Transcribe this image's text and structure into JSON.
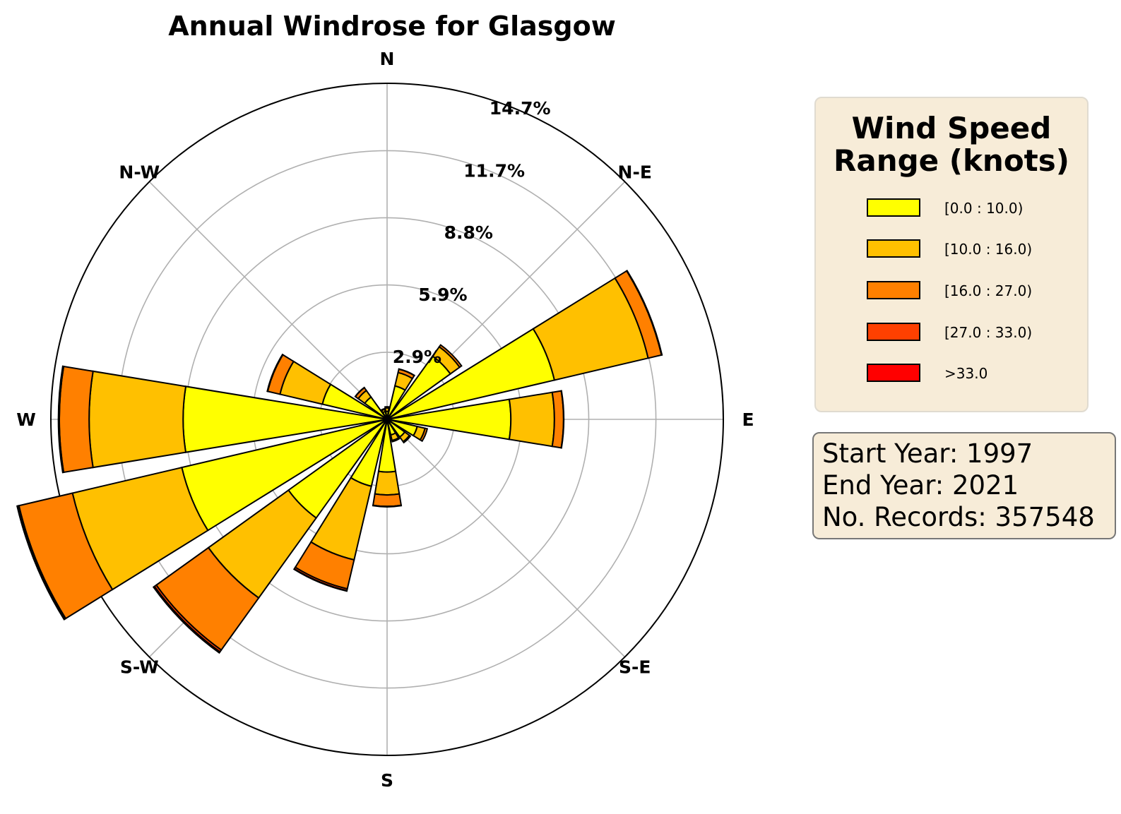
{
  "chart_data": {
    "type": "windrose",
    "title": "Annual Windrose for Glasgow",
    "directions": [
      "N",
      "NNE",
      "NE",
      "ENE",
      "E",
      "ESE",
      "SE",
      "SSE",
      "S",
      "SSW",
      "SW",
      "WSW",
      "W",
      "WNW",
      "NW",
      "NNW"
    ],
    "direction_labels": [
      "N",
      "N-E",
      "E",
      "S-E",
      "S",
      "S-W",
      "W",
      "N-W"
    ],
    "radial_ticks": [
      "2.9%",
      "5.9%",
      "8.8%",
      "11.7%",
      "14.7%"
    ],
    "radial_tick_values": [
      2.93,
      5.87,
      8.8,
      11.73,
      14.67
    ],
    "rmax": 14.67,
    "units": "%",
    "series": [
      {
        "name": "[0.0 : 10.0)",
        "color": "#ffff00",
        "values": [
          0.35,
          1.5,
          3.4,
          7.5,
          5.4,
          1.35,
          0.95,
          0.7,
          2.3,
          3.0,
          5.3,
          9.2,
          8.9,
          2.9,
          1.2,
          0.35
        ]
      },
      {
        "name": "[10.0 : 16.0)",
        "color": "#ffc000",
        "values": [
          0.15,
          0.6,
          0.5,
          4.2,
          1.9,
          0.35,
          0.25,
          0.25,
          1.0,
          3.3,
          4.3,
          4.9,
          4.1,
          1.9,
          0.35,
          0.1
        ]
      },
      {
        "name": "[16.0 : 27.0)",
        "color": "#ff8000",
        "values": [
          0.05,
          0.15,
          0.1,
          0.6,
          0.4,
          0.1,
          0.05,
          0.05,
          0.5,
          1.3,
          2.8,
          2.4,
          1.3,
          0.55,
          0.15,
          0.03
        ]
      },
      {
        "name": "[27.0 : 33.0)",
        "color": "#ff4000",
        "values": [
          0.0,
          0.01,
          0.0,
          0.02,
          0.01,
          0.0,
          0.0,
          0.0,
          0.02,
          0.08,
          0.1,
          0.06,
          0.03,
          0.02,
          0.01,
          0.0
        ]
      },
      {
        "name": ">33.0",
        "color": "#ff0000",
        "values": [
          0.0,
          0.0,
          0.0,
          0.0,
          0.0,
          0.0,
          0.0,
          0.0,
          0.0,
          0.02,
          0.05,
          0.02,
          0.01,
          0.0,
          0.0,
          0.0
        ]
      }
    ]
  },
  "legend": {
    "title_line1": "Wind Speed",
    "title_line2": "Range (knots)",
    "items": [
      "[0.0 : 10.0)",
      "[10.0 : 16.0)",
      "[16.0 : 27.0)",
      "[27.0 : 33.0)",
      ">33.0"
    ],
    "colors": [
      "#ffff00",
      "#ffc000",
      "#ff8000",
      "#ff4000",
      "#ff0000"
    ]
  },
  "info": {
    "start_year": "Start Year: 1997",
    "end_year": "End Year: 2021",
    "records": "No. Records: 357548"
  }
}
